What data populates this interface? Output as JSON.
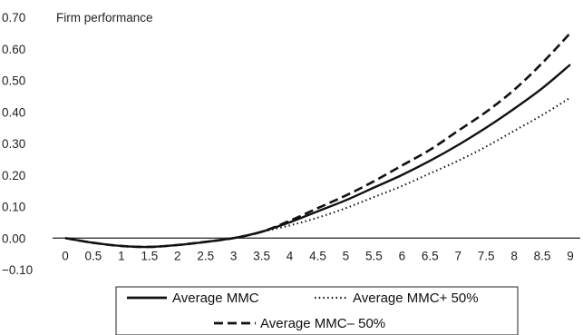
{
  "chart_data": {
    "type": "line",
    "ylabel": "Firm performance",
    "ylim": [
      -0.1,
      0.7
    ],
    "y_ticks": [
      "0.70",
      "0.60",
      "0.50",
      "0.40",
      "0.30",
      "0.20",
      "0.10",
      "0.00",
      "−0.10"
    ],
    "x_ticks": [
      "0",
      "0.5",
      "1",
      "1.5",
      "2",
      "2.5",
      "3",
      "3.5",
      "4",
      "4.5",
      "5",
      "5.5",
      "6",
      "6.5",
      "7",
      "7.5",
      "8",
      "8.5",
      "9"
    ],
    "xlim": [
      0,
      9
    ],
    "grid": false,
    "legend_position": "bottom",
    "series": [
      {
        "name": "Average MMC",
        "style": "solid",
        "x": [
          0,
          0.5,
          1,
          1.5,
          2,
          2.5,
          3,
          3.5,
          4,
          4.5,
          5,
          5.5,
          6,
          6.5,
          7,
          7.5,
          8,
          8.5,
          9
        ],
        "values": [
          0.0,
          -0.015,
          -0.025,
          -0.028,
          -0.022,
          -0.012,
          0.0,
          0.02,
          0.05,
          0.085,
          0.12,
          0.16,
          0.2,
          0.245,
          0.295,
          0.35,
          0.41,
          0.475,
          0.55
        ]
      },
      {
        "name": "Average MMC+ 50%",
        "style": "dotted",
        "x": [
          0,
          0.5,
          1,
          1.5,
          2,
          2.5,
          3,
          3.5,
          4,
          4.5,
          5,
          5.5,
          6,
          6.5,
          7,
          7.5,
          8,
          8.5,
          9
        ],
        "values": [
          0.0,
          -0.015,
          -0.025,
          -0.028,
          -0.022,
          -0.012,
          0.0,
          0.02,
          0.04,
          0.065,
          0.095,
          0.13,
          0.165,
          0.205,
          0.245,
          0.29,
          0.34,
          0.39,
          0.445
        ]
      },
      {
        "name": "Average MMC– 50%",
        "style": "dashed",
        "x": [
          0,
          0.5,
          1,
          1.5,
          2,
          2.5,
          3,
          3.5,
          4,
          4.5,
          5,
          5.5,
          6,
          6.5,
          7,
          7.5,
          8,
          8.5,
          9
        ],
        "values": [
          0.0,
          -0.015,
          -0.025,
          -0.028,
          -0.022,
          -0.012,
          0.0,
          0.02,
          0.055,
          0.095,
          0.135,
          0.18,
          0.23,
          0.28,
          0.34,
          0.4,
          0.47,
          0.555,
          0.65
        ]
      }
    ]
  }
}
